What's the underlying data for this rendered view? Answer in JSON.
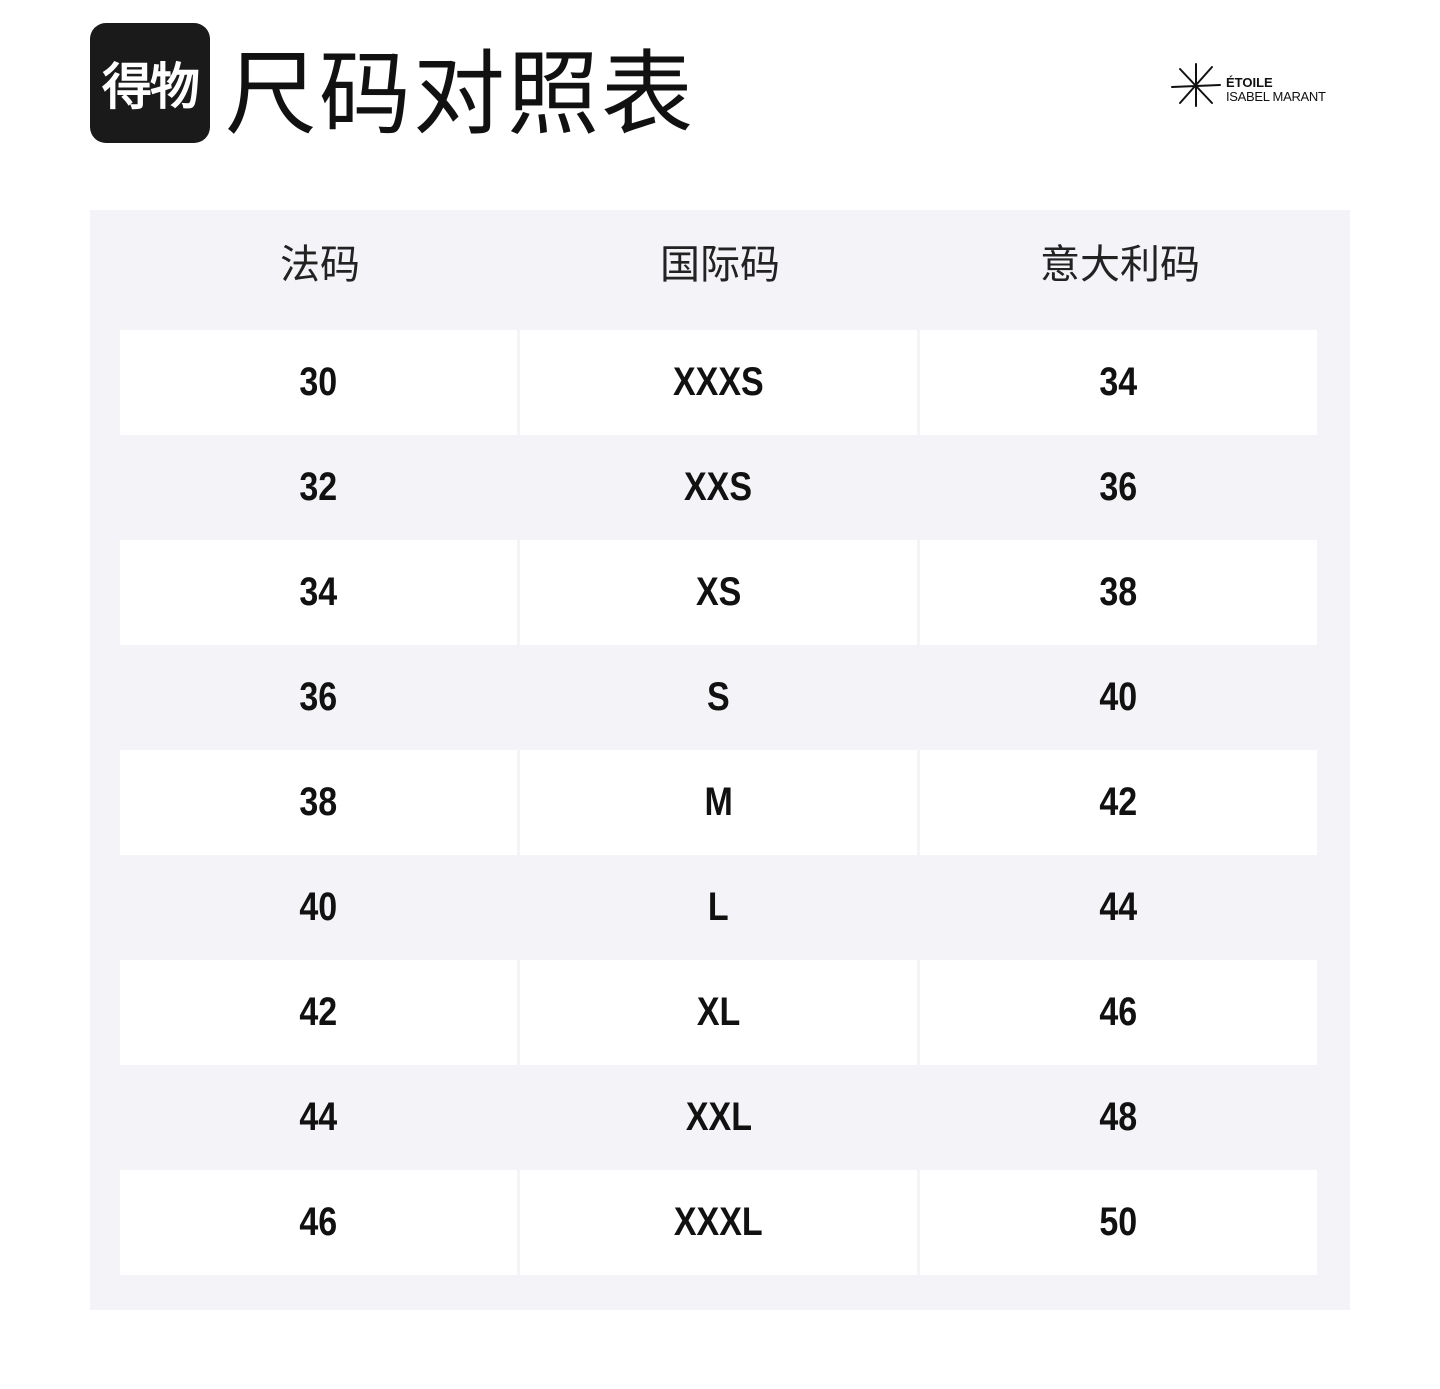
{
  "logo": {
    "text": "得物"
  },
  "title": "尺码对照表",
  "brand": {
    "line1": "ÉTOILE",
    "line2": "ISABEL MARANT"
  },
  "table": {
    "headers": [
      "法码",
      "国际码",
      "意大利码"
    ],
    "rows": [
      [
        "30",
        "XXXS",
        "34"
      ],
      [
        "32",
        "XXS",
        "36"
      ],
      [
        "34",
        "XS",
        "38"
      ],
      [
        "36",
        "S",
        "40"
      ],
      [
        "38",
        "M",
        "42"
      ],
      [
        "40",
        "L",
        "44"
      ],
      [
        "42",
        "XL",
        "46"
      ],
      [
        "44",
        "XXL",
        "48"
      ],
      [
        "46",
        "XXXL",
        "50"
      ]
    ]
  }
}
